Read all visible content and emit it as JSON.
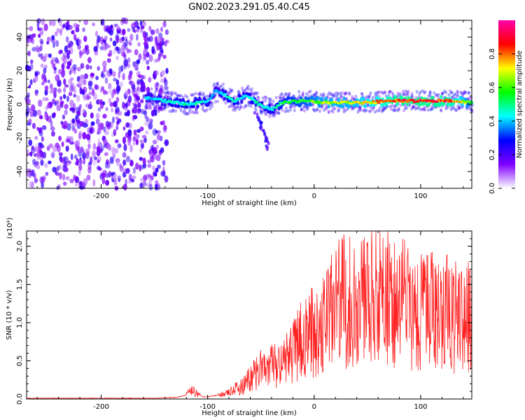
{
  "title": "GN02.2023.291.05.40.C45",
  "chart_data": [
    {
      "type": "heatmap",
      "xlabel": "Height of straight line (km)",
      "ylabel": "Frequency (Hz)",
      "xlim": [
        -270,
        148
      ],
      "ylim": [
        -50,
        50
      ],
      "x_ticks": [
        "-200",
        "-100",
        "0",
        "100"
      ],
      "y_ticks": [
        "-40",
        "-20",
        "0",
        "20",
        "40"
      ],
      "colorbar": {
        "label": "Normalized spectral amplitude",
        "range": [
          0,
          1
        ],
        "ticks": [
          "0.0",
          "0.2",
          "0.4",
          "0.6",
          "0.8"
        ],
        "colors": [
          "#ffffff",
          "#7f00ff",
          "#0000ff",
          "#00ffff",
          "#00ff00",
          "#ffff00",
          "#ff0000",
          "#ff00aa"
        ]
      },
      "noise_region": {
        "x": [
          -270,
          -138
        ],
        "amplitude": 0.2
      },
      "signal_ridge": [
        {
          "x": -158,
          "freq": 4,
          "amplitude": 0.4
        },
        {
          "x": -140,
          "freq": 2,
          "amplitude": 0.45
        },
        {
          "x": -120,
          "freq": 0,
          "amplitude": 0.5
        },
        {
          "x": -100,
          "freq": 2,
          "amplitude": 0.45
        },
        {
          "x": -92,
          "freq": 8,
          "amplitude": 0.4
        },
        {
          "x": -85,
          "freq": 6,
          "amplitude": 0.45
        },
        {
          "x": -75,
          "freq": 2,
          "amplitude": 0.5
        },
        {
          "x": -62,
          "freq": 5,
          "amplitude": 0.45
        },
        {
          "x": -52,
          "freq": 0,
          "amplitude": 0.5
        },
        {
          "x": -40,
          "freq": -3,
          "amplitude": 0.45
        },
        {
          "x": -30,
          "freq": 1,
          "amplitude": 0.55
        },
        {
          "x": -10,
          "freq": 2,
          "amplitude": 0.6
        },
        {
          "x": 10,
          "freq": 1,
          "amplitude": 0.7
        },
        {
          "x": 30,
          "freq": 1,
          "amplitude": 0.7
        },
        {
          "x": 50,
          "freq": 1,
          "amplitude": 0.75
        },
        {
          "x": 70,
          "freq": 2,
          "amplitude": 0.85
        },
        {
          "x": 90,
          "freq": 2,
          "amplitude": 0.9
        },
        {
          "x": 110,
          "freq": 2,
          "amplitude": 0.9
        },
        {
          "x": 130,
          "freq": 2,
          "amplitude": 0.85
        },
        {
          "x": 148,
          "freq": 1,
          "amplitude": 0.6
        }
      ],
      "descending_branch": [
        {
          "x": -55,
          "freq": -5
        },
        {
          "x": -50,
          "freq": -12
        },
        {
          "x": -46,
          "freq": -20
        },
        {
          "x": -43,
          "freq": -26
        }
      ]
    },
    {
      "type": "line",
      "xlabel": "Height of straight line (km)",
      "ylabel": "SNR (10 * v/v)",
      "y_multiplier": "(x10⁴)",
      "xlim": [
        -270,
        148
      ],
      "ylim": [
        0,
        2.2
      ],
      "x_ticks": [
        "-200",
        "-100",
        "0",
        "100"
      ],
      "y_ticks": [
        "0.0",
        "0.5",
        "1.0",
        "1.5",
        "2.0"
      ],
      "series": [
        {
          "color": "#ff2020",
          "x": [
            -270,
            -250,
            -230,
            -210,
            -190,
            -170,
            -150,
            -130,
            -120,
            -115,
            -110,
            -105,
            -100,
            -95,
            -90,
            -85,
            -80,
            -75,
            -70,
            -65,
            -60,
            -55,
            -50,
            -45,
            -40,
            -35,
            -30,
            -25,
            -20,
            -15,
            -10,
            -5,
            0,
            5,
            10,
            15,
            20,
            25,
            30,
            35,
            40,
            45,
            50,
            55,
            60,
            65,
            70,
            75,
            80,
            85,
            90,
            95,
            100,
            105,
            110,
            115,
            120,
            125,
            130,
            135,
            140,
            145,
            148
          ],
          "y": [
            0.01,
            0.01,
            0.01,
            0.01,
            0.01,
            0.01,
            0.01,
            0.02,
            0.05,
            0.12,
            0.08,
            0.03,
            0.03,
            0.04,
            0.05,
            0.06,
            0.08,
            0.12,
            0.15,
            0.2,
            0.28,
            0.32,
            0.38,
            0.35,
            0.42,
            0.45,
            0.5,
            0.52,
            0.6,
            0.7,
            0.8,
            0.85,
            0.9,
            0.95,
            1.0,
            1.1,
            1.2,
            1.25,
            1.3,
            1.28,
            1.35,
            1.3,
            1.32,
            1.4,
            1.38,
            1.35,
            1.3,
            1.28,
            1.25,
            1.3,
            1.2,
            1.2,
            1.15,
            1.2,
            1.15,
            1.1,
            1.1,
            1.12,
            1.05,
            1.1,
            1.15,
            1.1,
            1.0
          ]
        }
      ]
    }
  ]
}
